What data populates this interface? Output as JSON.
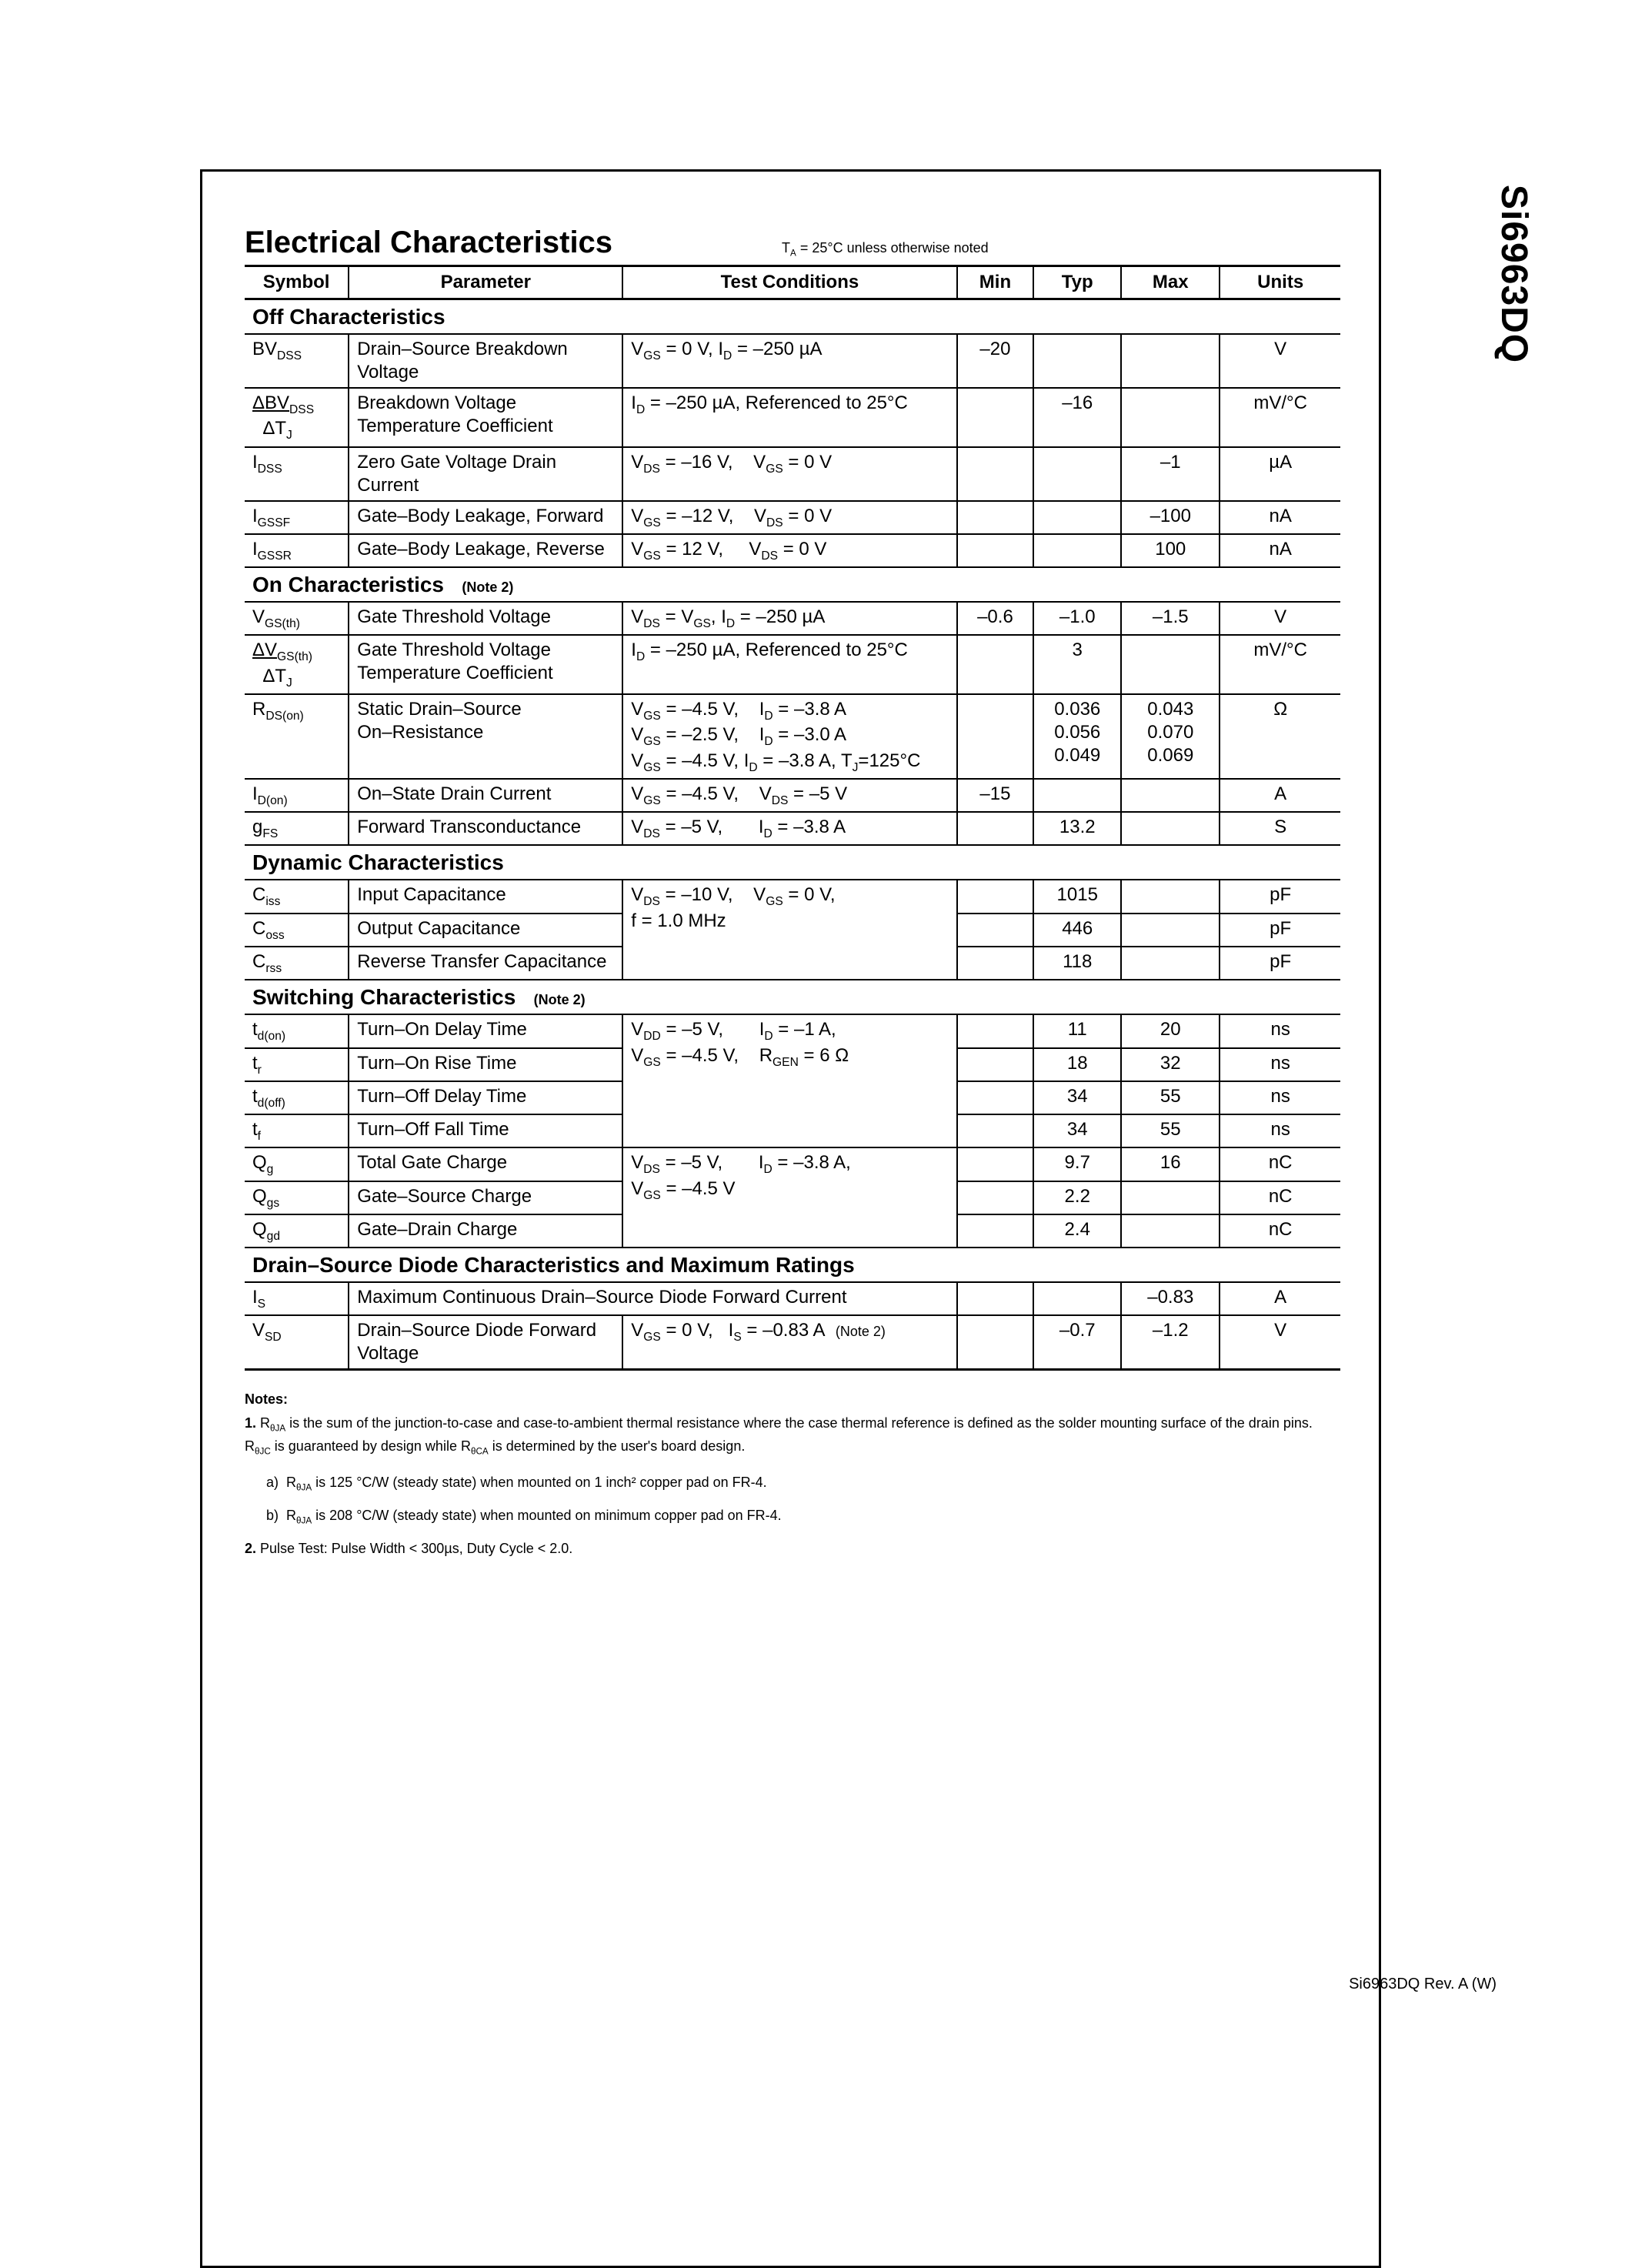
{
  "part_number": "Si6963DQ",
  "footer": "Si6963DQ Rev. A (W)",
  "title": "Electrical Characteristics",
  "title_note": "T<sub>A</sub> = 25°C unless otherwise noted",
  "headers": [
    "Symbol",
    "Parameter",
    "Test Conditions",
    "Min",
    "Typ",
    "Max",
    "Units"
  ],
  "sections": [
    {
      "name": "Off Characteristics",
      "note": "",
      "rows": [
        {
          "sym": "BV<sub>DSS</sub>",
          "par": "Drain–Source Breakdown Voltage",
          "cond": "V<sub>GS</sub> = 0 V, I<sub>D</sub> = –250 µA",
          "min": "–20",
          "typ": "",
          "max": "",
          "unit": "V"
        },
        {
          "sym": "<u>ΔBV<sub>DSS</sub></u><br>&nbsp;&nbsp;ΔT<sub>J</sub>",
          "par": "Breakdown Voltage Temperature Coefficient",
          "cond": "I<sub>D</sub> = –250 µA, Referenced to 25°C",
          "min": "",
          "typ": "–16",
          "max": "",
          "unit": "mV/°C"
        },
        {
          "sym": "I<sub>DSS</sub>",
          "par": "Zero Gate Voltage Drain Current",
          "cond": "V<sub>DS</sub> = –16 V,&nbsp;&nbsp;&nbsp;&nbsp;V<sub>GS</sub> = 0 V",
          "min": "",
          "typ": "",
          "max": "–1",
          "unit": "µA"
        },
        {
          "sym": "I<sub>GSSF</sub>",
          "par": "Gate–Body Leakage, Forward",
          "cond": "V<sub>GS</sub> = –12 V,&nbsp;&nbsp;&nbsp;&nbsp;V<sub>DS</sub> = 0 V",
          "min": "",
          "typ": "",
          "max": "–100",
          "unit": "nA"
        },
        {
          "sym": "I<sub>GSSR</sub>",
          "par": "Gate–Body Leakage, Reverse",
          "cond": "V<sub>GS</sub> = 12 V,&nbsp;&nbsp;&nbsp;&nbsp;&nbsp;V<sub>DS</sub> = 0 V",
          "min": "",
          "typ": "",
          "max": "100",
          "unit": "nA"
        }
      ]
    },
    {
      "name": "On Characteristics",
      "note": "(Note 2)",
      "rows": [
        {
          "sym": "V<sub>GS(th)</sub>",
          "par": "Gate Threshold Voltage",
          "cond": "V<sub>DS</sub> = V<sub>GS</sub>, I<sub>D</sub> = –250 µA",
          "min": "–0.6",
          "typ": "–1.0",
          "max": "–1.5",
          "unit": "V"
        },
        {
          "sym": "<u>ΔV<sub>GS(th)</sub></u><br>&nbsp;&nbsp;ΔT<sub>J</sub>",
          "par": "Gate Threshold Voltage Temperature Coefficient",
          "cond": "I<sub>D</sub> = –250 µA, Referenced to 25°C",
          "min": "",
          "typ": "3",
          "max": "",
          "unit": "mV/°C"
        },
        {
          "sym": "R<sub>DS(on)</sub>",
          "par": "Static Drain–Source<br>On–Resistance",
          "cond": "V<sub>GS</sub> = –4.5 V,&nbsp;&nbsp;&nbsp;&nbsp;I<sub>D</sub> = –3.8 A<br>V<sub>GS</sub> = –2.5 V,&nbsp;&nbsp;&nbsp;&nbsp;I<sub>D</sub> = –3.0 A<br>V<sub>GS</sub> = –4.5 V, I<sub>D</sub> = –3.8 A, T<sub>J</sub>=125°C",
          "min": "",
          "typ": "0.036<br>0.056<br>0.049",
          "max": "0.043<br>0.070<br>0.069",
          "unit": "Ω"
        },
        {
          "sym": "I<sub>D(on)</sub>",
          "par": "On–State Drain Current",
          "cond": "V<sub>GS</sub> = –4.5 V,&nbsp;&nbsp;&nbsp;&nbsp;V<sub>DS</sub> = –5 V",
          "min": "–15",
          "typ": "",
          "max": "",
          "unit": "A"
        },
        {
          "sym": "g<sub>FS</sub>",
          "par": "Forward Transconductance",
          "cond": "V<sub>DS</sub> = –5 V,&nbsp;&nbsp;&nbsp;&nbsp;&nbsp;&nbsp;&nbsp;I<sub>D</sub> = –3.8 A",
          "min": "",
          "typ": "13.2",
          "max": "",
          "unit": "S"
        }
      ]
    },
    {
      "name": "Dynamic Characteristics",
      "note": "",
      "rows": [
        {
          "sym": "C<sub>iss</sub>",
          "par": "Input Capacitance",
          "cond": "",
          "min": "",
          "typ": "1015",
          "max": "",
          "unit": "pF",
          "cond_span": 3,
          "cond_text": "V<sub>DS</sub> = –10 V,&nbsp;&nbsp;&nbsp;&nbsp;V<sub>GS</sub> = 0 V,<br>f = 1.0 MHz"
        },
        {
          "sym": "C<sub>oss</sub>",
          "par": "Output Capacitance",
          "skip_cond": true,
          "min": "",
          "typ": "446",
          "max": "",
          "unit": "pF"
        },
        {
          "sym": "C<sub>rss</sub>",
          "par": "Reverse Transfer Capacitance",
          "skip_cond": true,
          "min": "",
          "typ": "118",
          "max": "",
          "unit": "pF"
        }
      ]
    },
    {
      "name": "Switching Characteristics",
      "note": "(Note 2)",
      "rows": [
        {
          "sym": "t<sub>d(on)</sub>",
          "par": "Turn–On Delay Time",
          "cond_span": 4,
          "cond_text": "V<sub>DD</sub> = –5 V,&nbsp;&nbsp;&nbsp;&nbsp;&nbsp;&nbsp;&nbsp;I<sub>D</sub> = –1 A,<br>V<sub>GS</sub> = –4.5 V,&nbsp;&nbsp;&nbsp;&nbsp;R<sub>GEN</sub> = 6 Ω",
          "min": "",
          "typ": "11",
          "max": "20",
          "unit": "ns"
        },
        {
          "sym": "t<sub>r</sub>",
          "par": "Turn–On Rise Time",
          "skip_cond": true,
          "min": "",
          "typ": "18",
          "max": "32",
          "unit": "ns"
        },
        {
          "sym": "t<sub>d(off)</sub>",
          "par": "Turn–Off Delay Time",
          "skip_cond": true,
          "min": "",
          "typ": "34",
          "max": "55",
          "unit": "ns"
        },
        {
          "sym": "t<sub>f</sub>",
          "par": "Turn–Off Fall Time",
          "skip_cond": true,
          "min": "",
          "typ": "34",
          "max": "55",
          "unit": "ns"
        },
        {
          "sym": "Q<sub>g</sub>",
          "par": "Total Gate Charge",
          "cond_span": 3,
          "cond_text": "V<sub>DS</sub> = –5 V,&nbsp;&nbsp;&nbsp;&nbsp;&nbsp;&nbsp;&nbsp;I<sub>D</sub> = –3.8 A,<br>V<sub>GS</sub> = –4.5 V",
          "min": "",
          "typ": "9.7",
          "max": "16",
          "unit": "nC"
        },
        {
          "sym": "Q<sub>gs</sub>",
          "par": "Gate–Source Charge",
          "skip_cond": true,
          "min": "",
          "typ": "2.2",
          "max": "",
          "unit": "nC"
        },
        {
          "sym": "Q<sub>gd</sub>",
          "par": "Gate–Drain Charge",
          "skip_cond": true,
          "min": "",
          "typ": "2.4",
          "max": "",
          "unit": "nC"
        }
      ]
    },
    {
      "name": "Drain–Source Diode Characteristics and Maximum Ratings",
      "note": "",
      "rows": [
        {
          "sym": "I<sub>S</sub>",
          "par_colspan": 2,
          "par": "Maximum Continuous Drain–Source Diode Forward Current",
          "min": "",
          "typ": "",
          "max": "–0.83",
          "unit": "A"
        },
        {
          "sym": "V<sub>SD</sub>",
          "par": "Drain–Source Diode Forward Voltage",
          "cond": "V<sub>GS</sub> = 0 V,&nbsp;&nbsp;&nbsp;I<sub>S</sub> = –0.83 A&nbsp;&nbsp;<span style='font-size:18px'>(Note 2)</span>",
          "min": "",
          "typ": "–0.7",
          "max": "–1.2",
          "unit": "V",
          "last": true
        }
      ]
    }
  ],
  "notes_title": "Notes:",
  "notes": [
    {
      "n": "1.",
      "text": "R<sub>θJA</sub> is the sum of the junction-to-case and case-to-ambient thermal resistance where the case thermal reference is defined as the solder mounting surface of the drain pins.  R<sub>θJC</sub> is guaranteed by design while R<sub>θCA</sub> is determined by the user's board design."
    },
    {
      "sub": "a)",
      "text": "R<sub>θJA</sub> is 125 °C/W (steady state) when mounted on 1 inch² copper pad on FR-4."
    },
    {
      "sub": "b)",
      "text": "R<sub>θJA</sub> is 208 °C/W (steady state) when mounted on minimum copper pad on FR-4."
    },
    {
      "n": "2.",
      "text": "Pulse Test: Pulse Width < 300µs, Duty Cycle < 2.0."
    }
  ]
}
